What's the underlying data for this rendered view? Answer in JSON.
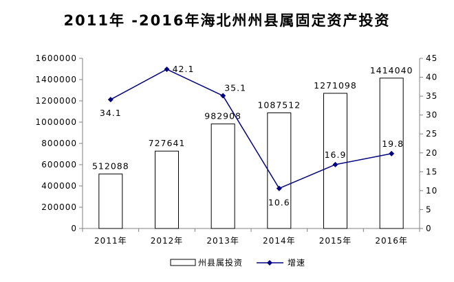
{
  "chart_data": {
    "type": "bar+line",
    "title": "2011年 -2016年海北州州县属固定资产投资",
    "categories": [
      "2011年",
      "2012年",
      "2013年",
      "2014年",
      "2015年",
      "2016年"
    ],
    "series": [
      {
        "name": "州县属投资",
        "type": "bar",
        "axis": "left",
        "values": [
          512088,
          727641,
          982908,
          1087512,
          1271098,
          1414040
        ],
        "labels": [
          "512088",
          "727641",
          "982908",
          "1087512",
          "1271098",
          "1414040"
        ]
      },
      {
        "name": "增速",
        "type": "line",
        "axis": "right",
        "values": [
          34.1,
          42.1,
          35.1,
          10.6,
          16.9,
          19.8
        ],
        "labels": [
          "34.1",
          "42.1",
          "35.1",
          "10.6",
          "16.9",
          "19.8"
        ]
      }
    ],
    "y_left": {
      "min": 0,
      "max": 1600000,
      "step": 200000,
      "ticks": [
        "0",
        "200000",
        "400000",
        "600000",
        "800000",
        "1000000",
        "1200000",
        "1400000",
        "1600000"
      ]
    },
    "y_right": {
      "min": 0,
      "max": 45,
      "step": 5,
      "ticks": [
        "0",
        "5",
        "10",
        "15",
        "20",
        "25",
        "30",
        "35",
        "40",
        "45"
      ]
    },
    "grid": false,
    "legend_position": "bottom-center",
    "colors": {
      "bar_fill": "#ffffff",
      "bar_stroke": "#000000",
      "line": "#000080",
      "marker": "#000080",
      "axis": "#808080"
    }
  }
}
